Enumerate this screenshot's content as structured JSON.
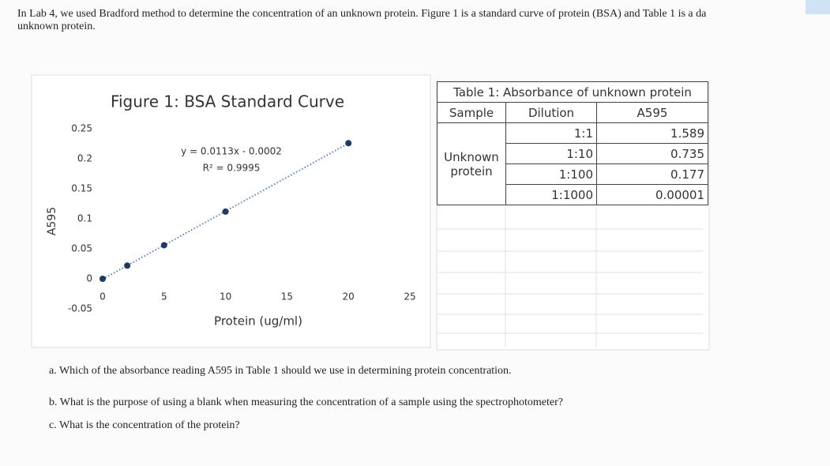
{
  "intro": [
    "In Lab 4, we used Bradford method to determine the concentration of an unknown protein. Figure 1 is a standard curve of protein (BSA) and Table 1 is a da",
    "unknown protein."
  ],
  "chart_data": {
    "type": "scatter",
    "title": "Figure 1: BSA Standard Curve",
    "x_label": "Protein (ug/ml)",
    "y_label": "A595",
    "x": [
      0,
      2,
      5,
      10,
      20
    ],
    "values": [
      0,
      0.022,
      0.056,
      0.112,
      0.226
    ],
    "color": "#1f3864",
    "xlim": [
      0,
      25
    ],
    "ylim": [
      -0.05,
      0.25
    ],
    "xticks": [
      0,
      5,
      10,
      15,
      20,
      25
    ],
    "yticks": [
      0.25,
      0.2,
      0.15,
      0.1,
      0.05,
      0,
      -0.05
    ],
    "trendline": "linear",
    "annotations": [
      "y = 0.0113x - 0.0002",
      "R² = 0.9995"
    ]
  },
  "table": {
    "title": "Table 1: Absorbance of unknown protein",
    "header": [
      "Sample",
      "Dilution",
      "A595"
    ],
    "sample": "Unknown protein",
    "rows": [
      [
        "1:1",
        "1.589"
      ],
      [
        "1:10",
        "0.735"
      ],
      [
        "1:100",
        "0.177"
      ],
      [
        "1:1000",
        "0.00001"
      ]
    ]
  },
  "questions": [
    "a. Which of the absorbance reading A595 in Table 1 should we use in determining protein concentration.",
    "b. What is the purpose of using a blank when measuring the concentration of a sample using the spectrophotometer?",
    "c. What is the concentration of the protein?"
  ]
}
